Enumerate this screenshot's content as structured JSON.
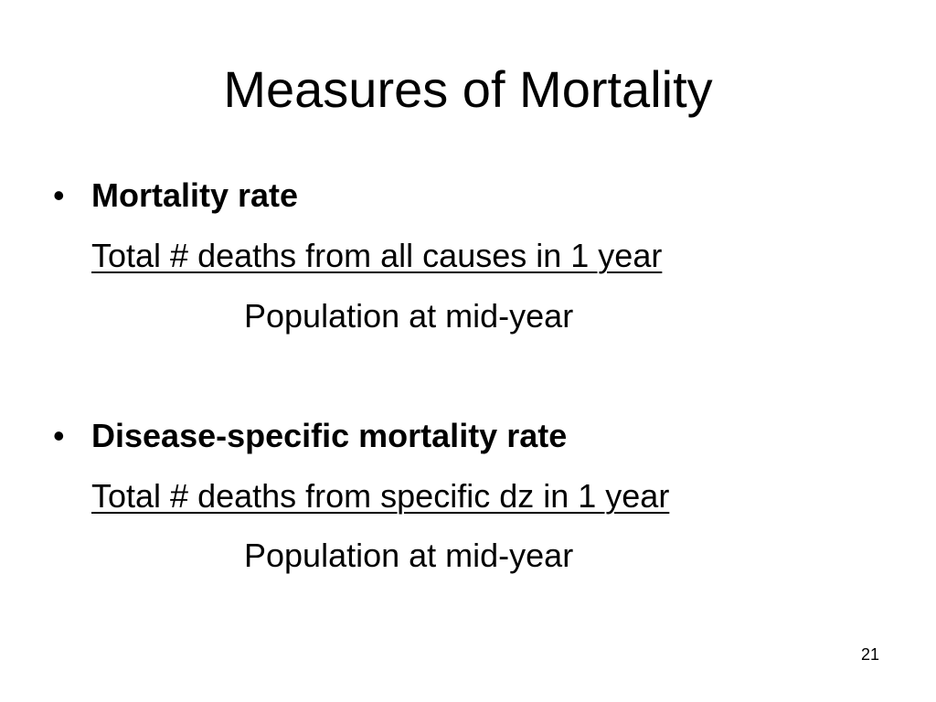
{
  "slide": {
    "title": "Measures of Mortality",
    "bullet_marker": "•",
    "items": [
      {
        "heading": "Mortality rate",
        "numerator": "Total # deaths from all causes in 1 year",
        "denominator": "Population at mid-year"
      },
      {
        "heading": "Disease-specific mortality rate",
        "numerator": "Total # deaths from specific dz in 1 year",
        "denominator": "Population at mid-year"
      }
    ],
    "page_number": "21"
  }
}
